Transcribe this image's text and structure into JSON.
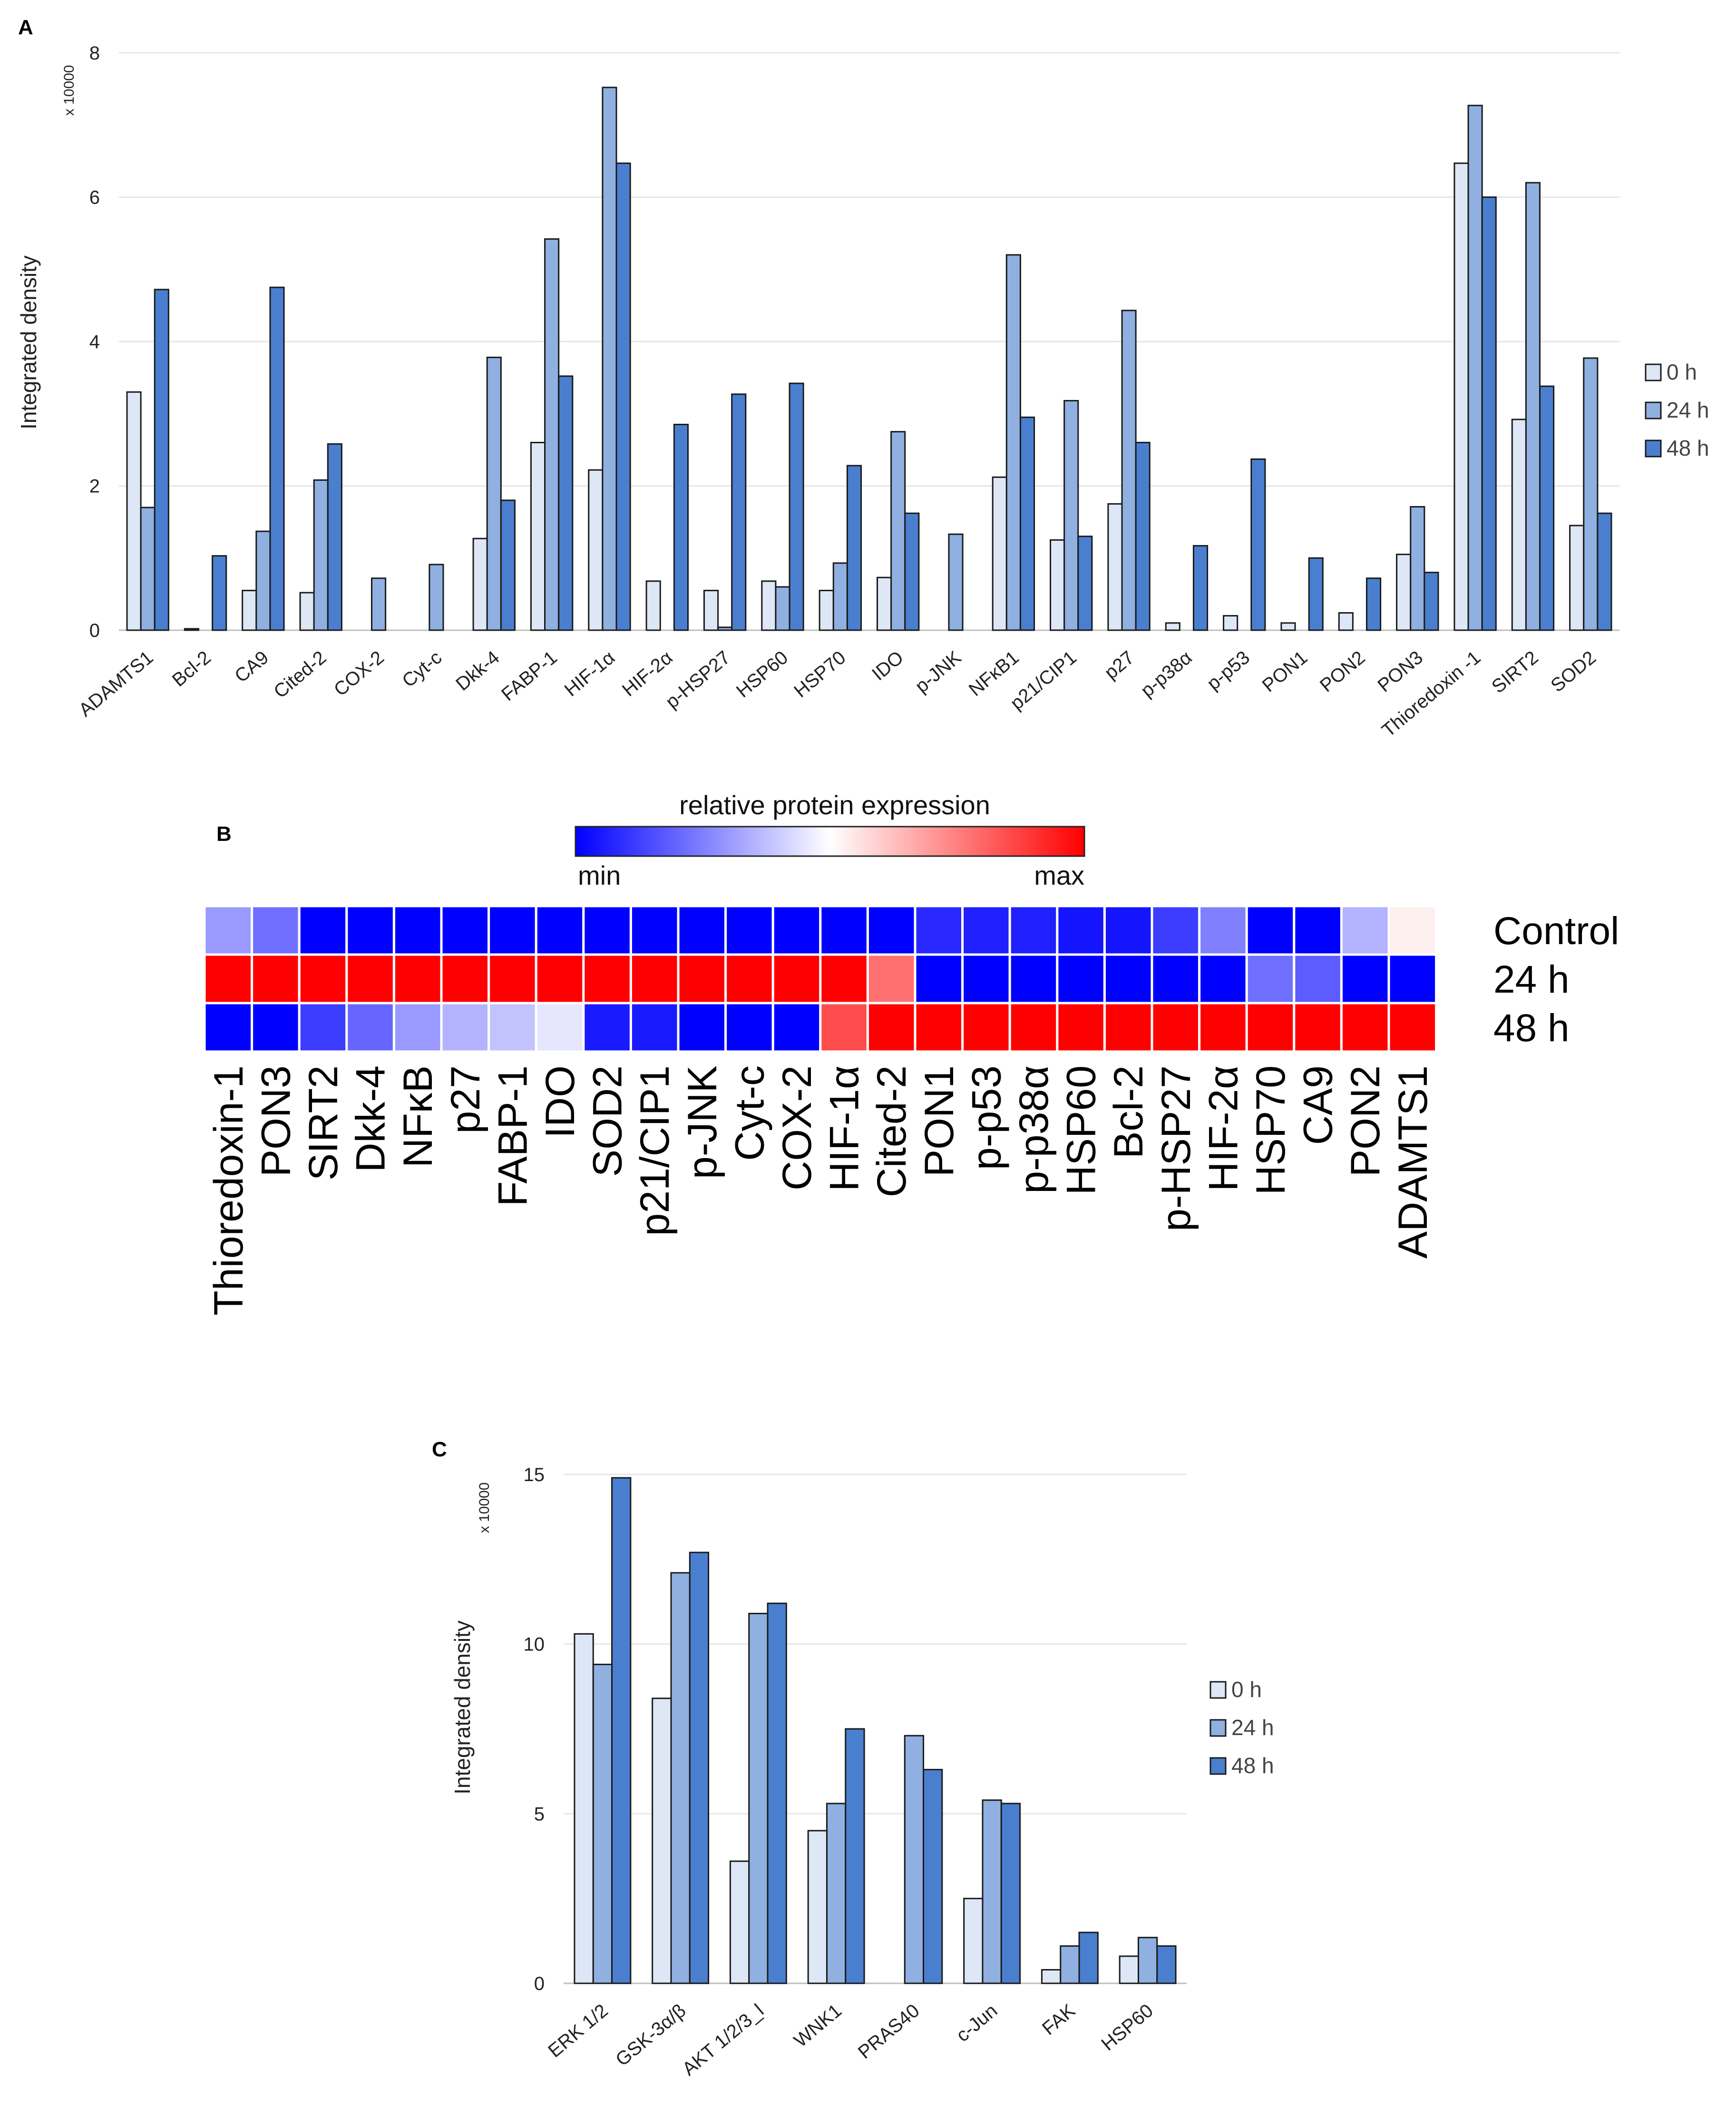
{
  "colors": {
    "s0h": "#dde7f5",
    "s24h": "#8fb0e0",
    "s48h": "#4a7fcf",
    "bar_stroke": "#1a1a1a",
    "grid": "#e6e6e6",
    "hm_min": "#0000ff",
    "hm_mid": "#ffffff",
    "hm_max": "#ff0000"
  },
  "chart_data": [
    {
      "id": "A",
      "type": "bar",
      "panel_label": "A",
      "multiplier_label": "x 10000",
      "ylabel": "Integrated density",
      "xlabel": "",
      "ylim": [
        0,
        8
      ],
      "yticks": [
        "0",
        "2",
        "4",
        "6",
        "8"
      ],
      "grid": true,
      "legend_position": "right",
      "categories": [
        "ADAMTS1",
        "Bcl-2",
        "CA9",
        "Cited-2",
        "COX-2",
        "Cyt-c",
        "Dkk-4",
        "FABP-1",
        "HIF-1α",
        "HIF-2α",
        "p-HSP27",
        "HSP60",
        "HSP70",
        "IDO",
        "p-JNK",
        "NFκB1",
        "p21/CIP1",
        "p27",
        "p-p38α",
        "p-p53",
        "PON1",
        "PON2",
        "PON3",
        "Thioredoxin -1",
        "SIRT2",
        "SOD2"
      ],
      "series": [
        {
          "name": "0 h",
          "values": [
            3.3,
            0.02,
            0.55,
            0.52,
            0,
            0,
            1.27,
            2.6,
            2.22,
            0.68,
            0.55,
            0.68,
            0.55,
            0.73,
            0,
            2.12,
            1.25,
            1.75,
            0.1,
            0.2,
            0.1,
            0.24,
            1.05,
            6.47,
            2.92,
            1.45
          ]
        },
        {
          "name": "24 h",
          "values": [
            1.7,
            0,
            1.37,
            2.08,
            0.72,
            0.91,
            3.78,
            5.42,
            7.52,
            0,
            0.04,
            0.6,
            0.93,
            2.75,
            1.33,
            5.2,
            3.18,
            4.43,
            0,
            0,
            0,
            0,
            1.71,
            7.27,
            6.2,
            3.77
          ]
        },
        {
          "name": "48 h",
          "values": [
            4.72,
            1.03,
            4.75,
            2.58,
            0,
            0,
            1.8,
            3.52,
            6.47,
            2.85,
            3.27,
            3.42,
            2.28,
            1.62,
            0,
            2.95,
            1.3,
            2.6,
            1.17,
            2.37,
            1.0,
            0.72,
            0.8,
            6.0,
            3.38,
            1.62
          ]
        }
      ]
    },
    {
      "id": "B",
      "type": "heatmap",
      "panel_label": "B",
      "title": "relative protein expression",
      "scale_min_label": "min",
      "scale_max_label": "max",
      "rows": [
        "Control",
        "24 h",
        "48 h"
      ],
      "columns": [
        "Thioredoxin-1",
        "PON3",
        "SIRT2",
        "Dkk-4",
        "NFκB",
        "p27",
        "FABP-1",
        "IDO",
        "SOD2",
        "p21/CIP1",
        "p-JNK",
        "Cyt-c",
        "COX-2",
        "HIF-1α",
        "Cited-2",
        "PON1",
        "p-p53",
        "p-p38α",
        "HSP60",
        "Bcl-2",
        "p-HSP27",
        "HIF-2α",
        "HSP70",
        "CA9",
        "PON2",
        "ADAMTS1"
      ],
      "values": [
        [
          0.3,
          0.22,
          0.0,
          0.0,
          0.0,
          0.0,
          0.0,
          0.0,
          0.0,
          0.0,
          0.0,
          0.0,
          0.0,
          0.0,
          0.0,
          0.08,
          0.06,
          0.06,
          0.04,
          0.04,
          0.12,
          0.25,
          0.0,
          0.0,
          0.35,
          0.53
        ],
        [
          1.0,
          1.0,
          1.0,
          1.0,
          1.0,
          1.0,
          1.0,
          1.0,
          1.0,
          1.0,
          1.0,
          1.0,
          1.0,
          1.0,
          0.78,
          0.0,
          0.0,
          0.0,
          0.0,
          0.0,
          0.0,
          0.0,
          0.22,
          0.18,
          0.0,
          0.0
        ],
        [
          0.0,
          0.0,
          0.12,
          0.2,
          0.3,
          0.35,
          0.38,
          0.45,
          0.05,
          0.05,
          0.0,
          0.0,
          0.0,
          0.85,
          1.0,
          1.0,
          1.0,
          1.0,
          1.0,
          1.0,
          1.0,
          1.0,
          1.0,
          1.0,
          1.0,
          1.0
        ]
      ]
    },
    {
      "id": "C",
      "type": "bar",
      "panel_label": "C",
      "multiplier_label": "x 10000",
      "ylabel": "Integrated density",
      "xlabel": "",
      "ylim": [
        0,
        15
      ],
      "yticks": [
        "0",
        "5",
        "10",
        "15"
      ],
      "grid": true,
      "legend_position": "right",
      "categories": [
        "ERK 1/2",
        "GSK-3α/β",
        "AKT 1/2/3_l",
        "WNK1",
        "PRAS40",
        "c-Jun",
        "FAK",
        "HSP60"
      ],
      "series": [
        {
          "name": "0 h",
          "values": [
            10.3,
            8.4,
            3.6,
            4.5,
            0,
            2.5,
            0.4,
            0.8
          ]
        },
        {
          "name": "24 h",
          "values": [
            9.4,
            12.1,
            10.9,
            5.3,
            7.3,
            5.4,
            1.1,
            1.35
          ]
        },
        {
          "name": "48 h",
          "values": [
            14.9,
            12.7,
            11.2,
            7.5,
            6.3,
            5.3,
            1.5,
            1.1
          ]
        }
      ]
    }
  ]
}
